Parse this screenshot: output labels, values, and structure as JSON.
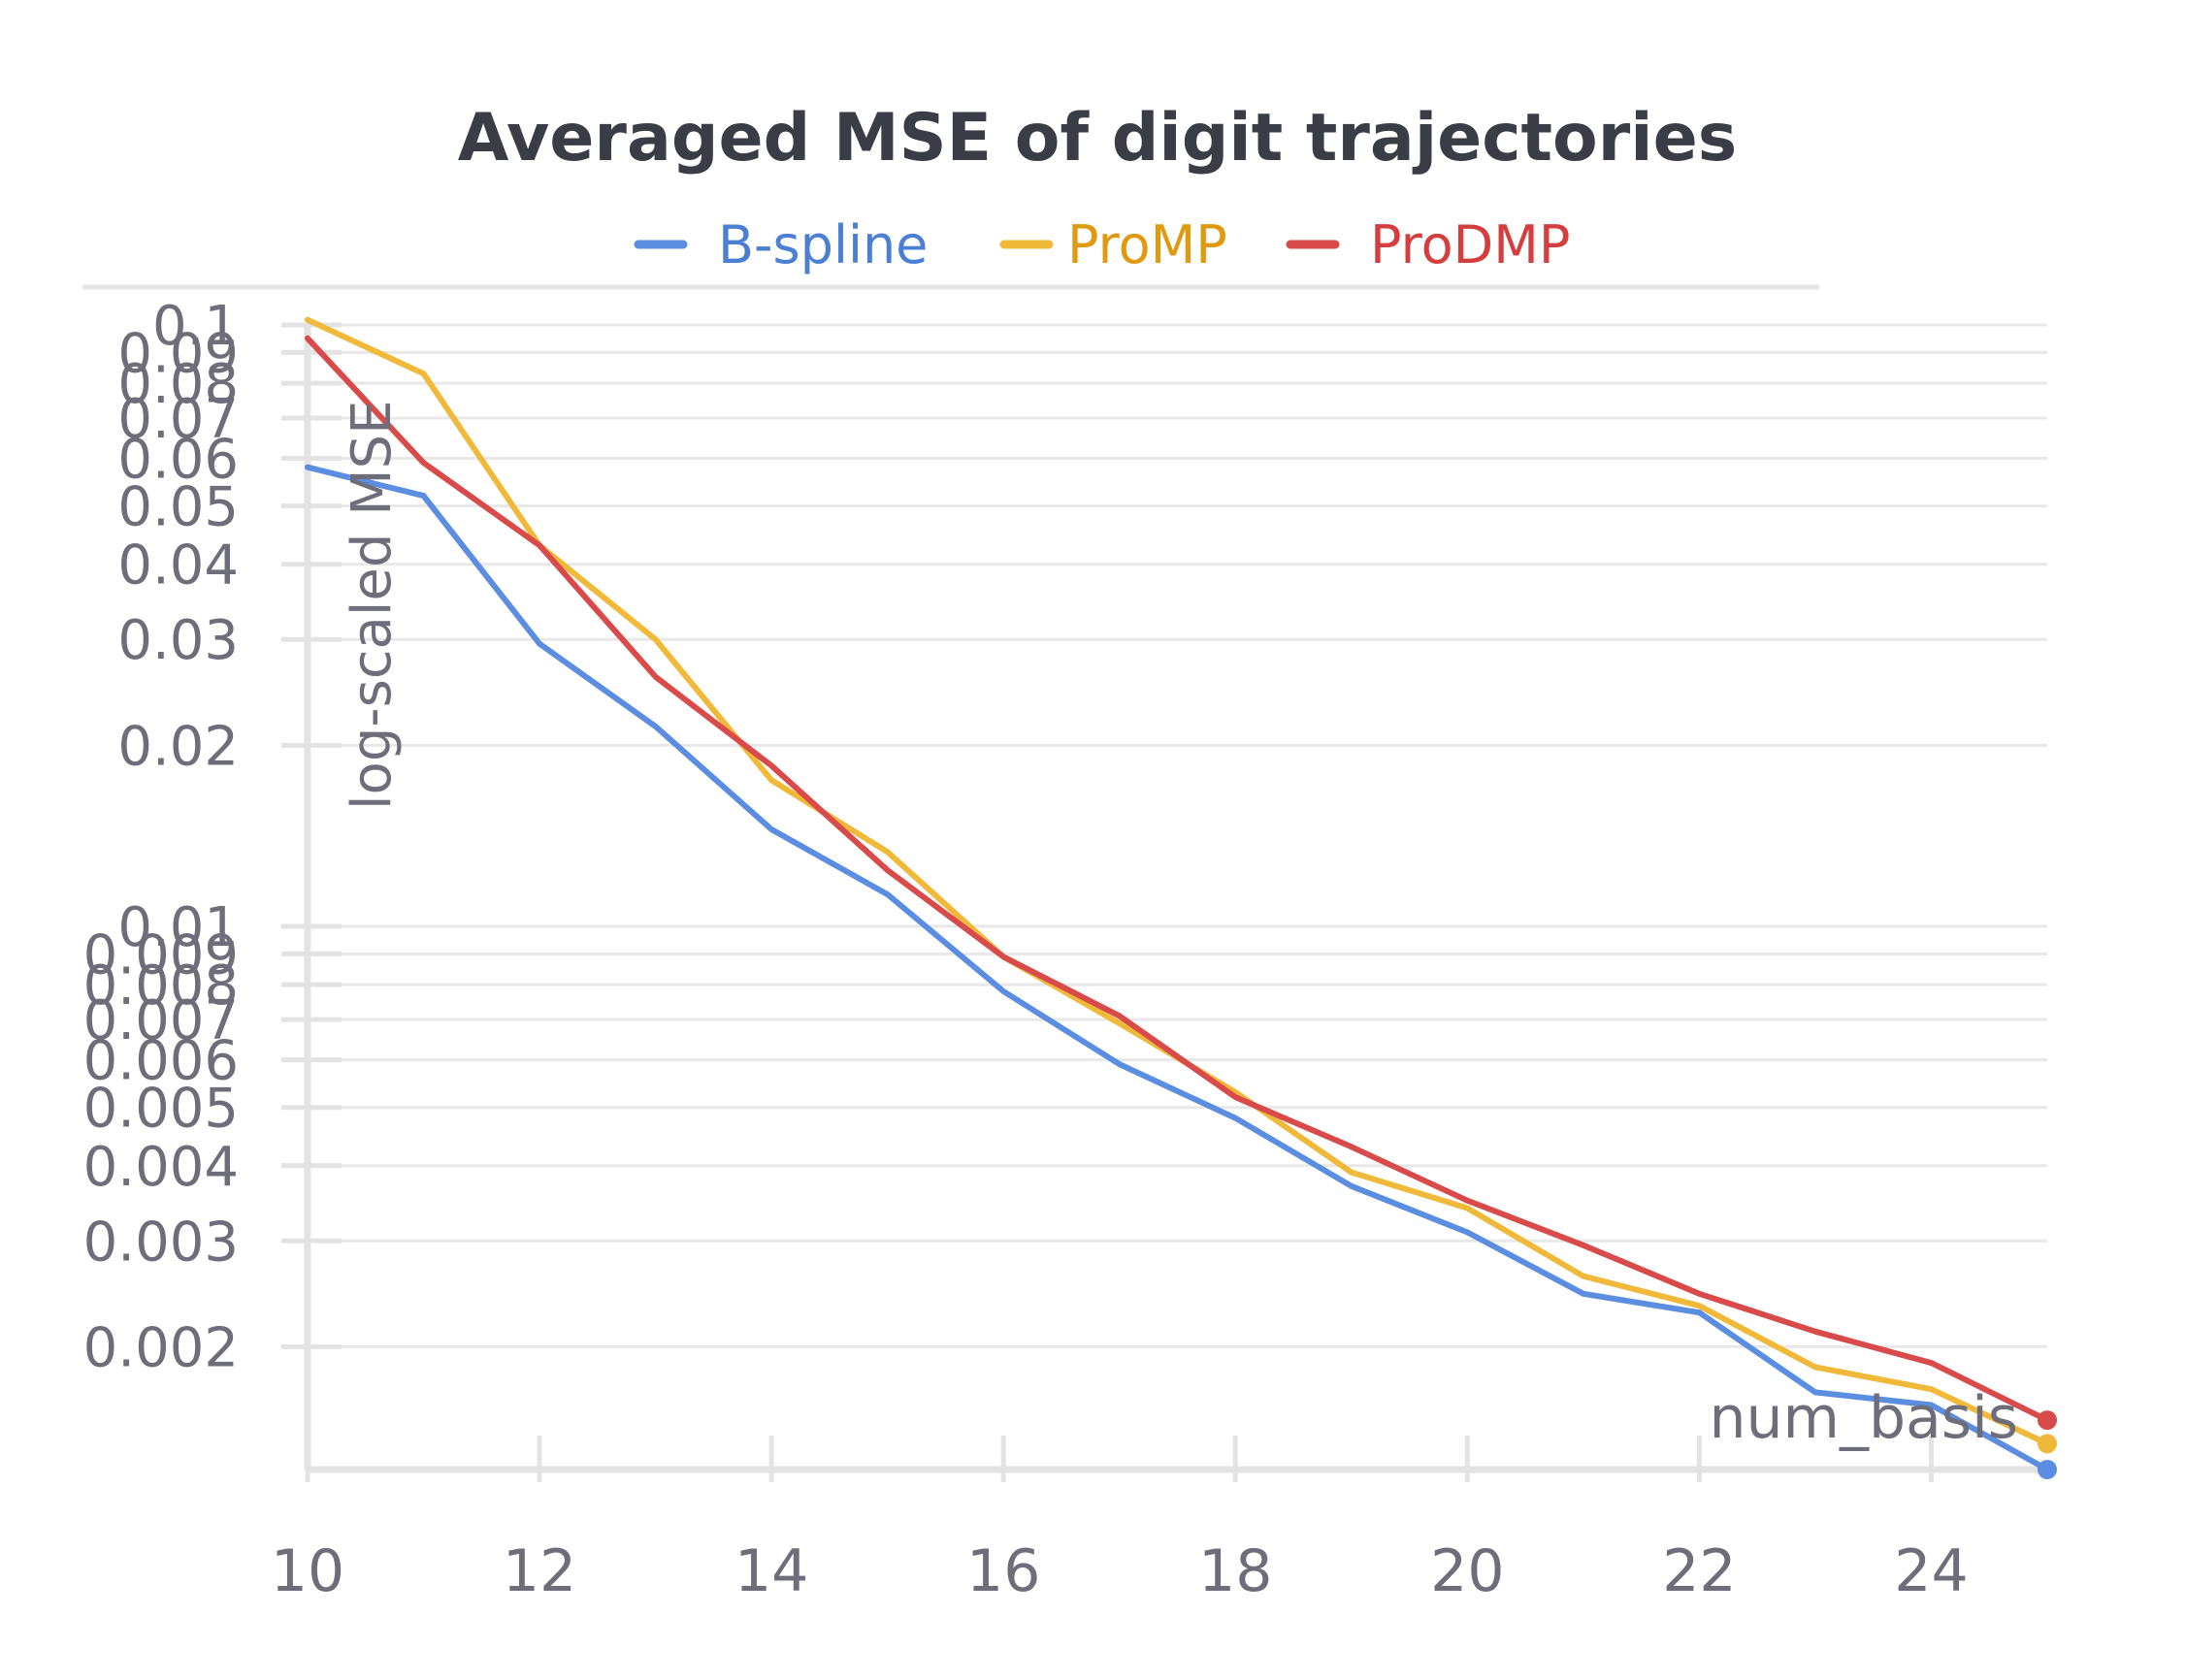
{
  "chart_data": {
    "type": "line",
    "title": "Averaged MSE of digit trajectories",
    "xlabel": "num_basis",
    "ylabel": "log-scaled MSE",
    "yscale": "log",
    "xlim": [
      10,
      25
    ],
    "ylim": [
      0.00125,
      0.1
    ],
    "x": [
      10,
      11,
      12,
      13,
      14,
      15,
      16,
      17,
      18,
      19,
      20,
      21,
      22,
      23,
      24,
      25
    ],
    "x_ticks": [
      10,
      12,
      14,
      16,
      18,
      20,
      22,
      24
    ],
    "x_tick_labels": [
      "10",
      "12",
      "14",
      "16",
      "18",
      "20",
      "22",
      "24"
    ],
    "y_ticks": [
      0.1,
      0.09,
      0.08,
      0.07,
      0.06,
      0.05,
      0.04,
      0.03,
      0.02,
      0.01,
      0.009,
      0.008,
      0.007,
      0.006,
      0.005,
      0.004,
      0.003,
      0.002
    ],
    "y_tick_labels": [
      "0.1",
      "0.09",
      "0.08",
      "0.07",
      "0.06",
      "0.05",
      "0.04",
      "0.03",
      "0.02",
      "0.01",
      "0.009",
      "0.008",
      "0.007",
      "0.006",
      "0.005",
      "0.004",
      "0.003",
      "0.002"
    ],
    "grid": true,
    "legend_position": "top",
    "series": [
      {
        "name": "B-spline",
        "color": "#5b8ee0",
        "text_color": "#4a7fd4",
        "values": [
          0.058,
          0.052,
          0.0295,
          0.0215,
          0.0145,
          0.0113,
          0.0078,
          0.0059,
          0.0048,
          0.0037,
          0.0031,
          0.00245,
          0.00228,
          0.00168,
          0.0016,
          0.00125
        ]
      },
      {
        "name": "ProMP",
        "color": "#f0b93a",
        "text_color": "#e09a10",
        "values": [
          0.102,
          0.083,
          0.043,
          0.03,
          0.0175,
          0.0133,
          0.0089,
          0.0069,
          0.0053,
          0.0039,
          0.0034,
          0.00262,
          0.00234,
          0.00185,
          0.0017,
          0.00138
        ]
      },
      {
        "name": "ProDMP",
        "color": "#d94a4a",
        "text_color": "#d43e3e",
        "values": [
          0.095,
          0.059,
          0.043,
          0.026,
          0.0185,
          0.0124,
          0.0089,
          0.0071,
          0.0052,
          0.0043,
          0.0035,
          0.00295,
          0.00245,
          0.00212,
          0.00188,
          0.00151
        ]
      }
    ]
  }
}
